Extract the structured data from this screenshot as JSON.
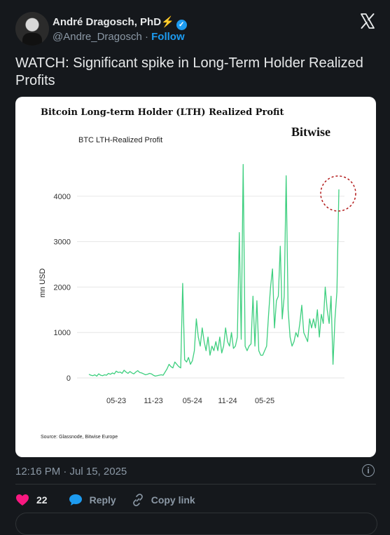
{
  "author": {
    "name": "André Dragosch, PhD",
    "emoji": "⚡",
    "handle": "@Andre_Dragosch",
    "separator": "·",
    "follow_label": "Follow"
  },
  "tweet": {
    "text": "WATCH: Significant spike in Long-Term Holder Realized Profits",
    "timestamp": "12:16 PM · Jul 15, 2025"
  },
  "actions": {
    "like_count": "22",
    "reply_label": "Reply",
    "copy_label": "Copy link"
  },
  "colors": {
    "accent": "#1d9bf0",
    "like": "#f91880",
    "line": "#3ecf7f",
    "highlight_circle": "#b31b1b"
  },
  "chart_data": {
    "type": "line",
    "title": "Bitcoin Long-term Holder (LTH) Realized Profit",
    "subtitle": "BTC LTH-Realized Profit",
    "brand": "Bitwise",
    "source": "Source: Glassnode, Bitwise Europe",
    "ylabel": "mn USD",
    "ylim": [
      0,
      4800
    ],
    "yticks": [
      "0",
      "1000",
      "2000",
      "3000",
      "4000"
    ],
    "ytick_values": [
      0,
      1000,
      2000,
      3000,
      4000
    ],
    "xticks": [
      "05-23",
      "11-23",
      "05-24",
      "11-24",
      "05-25"
    ],
    "xtick_index": [
      135,
      175,
      215,
      255,
      295
    ],
    "grid": true,
    "series": [
      {
        "values": [
          80,
          60,
          50,
          70,
          40,
          90,
          60,
          50,
          70,
          60,
          100,
          80,
          110,
          90,
          150,
          120,
          130,
          100,
          170,
          130,
          100,
          140,
          110,
          90,
          130,
          160,
          120,
          110,
          90,
          70,
          80,
          100,
          90,
          60,
          40,
          50,
          60,
          70,
          60,
          130,
          200,
          300,
          250,
          220,
          350,
          300,
          250,
          220,
          2080,
          400,
          350,
          450,
          300,
          380,
          600,
          1300,
          900,
          700,
          1100,
          800,
          600,
          900,
          500,
          700,
          600,
          800,
          600,
          900,
          550,
          700,
          1100,
          800,
          700,
          1000,
          650,
          700,
          900,
          3200,
          850,
          4700,
          700,
          600,
          700,
          750,
          1800,
          700,
          1700,
          600,
          500,
          500,
          600,
          700,
          1400,
          2000,
          2400,
          1100,
          1700,
          1800,
          2900,
          1300,
          1800,
          4450,
          1500,
          900,
          700,
          800,
          1000,
          900,
          1200,
          1600,
          1000,
          900,
          800,
          1300,
          1100,
          1300,
          1100,
          1500,
          900,
          1400,
          1200,
          2000,
          1500,
          1200,
          1800,
          300,
          1300,
          1900,
          4150
        ]
      }
    ]
  }
}
